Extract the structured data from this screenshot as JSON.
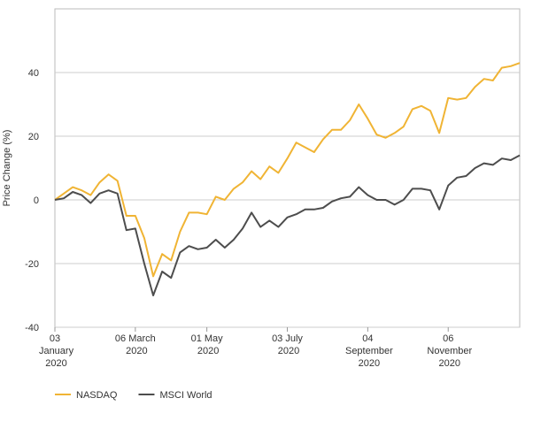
{
  "chart_data": {
    "type": "line",
    "ylabel": "Price Change (%)",
    "x": [
      "2020-01-03",
      "2020-01-10",
      "2020-01-17",
      "2020-01-24",
      "2020-01-31",
      "2020-02-07",
      "2020-02-14",
      "2020-02-21",
      "2020-02-28",
      "2020-03-06",
      "2020-03-13",
      "2020-03-20",
      "2020-03-27",
      "2020-04-03",
      "2020-04-10",
      "2020-04-17",
      "2020-04-24",
      "2020-05-01",
      "2020-05-08",
      "2020-05-15",
      "2020-05-22",
      "2020-05-29",
      "2020-06-05",
      "2020-06-12",
      "2020-06-19",
      "2020-06-26",
      "2020-07-03",
      "2020-07-10",
      "2020-07-17",
      "2020-07-24",
      "2020-07-31",
      "2020-08-07",
      "2020-08-14",
      "2020-08-21",
      "2020-08-28",
      "2020-09-04",
      "2020-09-11",
      "2020-09-18",
      "2020-09-25",
      "2020-10-02",
      "2020-10-09",
      "2020-10-16",
      "2020-10-23",
      "2020-10-30",
      "2020-11-06",
      "2020-11-13",
      "2020-11-20",
      "2020-11-27",
      "2020-12-04",
      "2020-12-11",
      "2020-12-18",
      "2020-12-25",
      "2021-01-01"
    ],
    "series": [
      {
        "name": "NASDAQ",
        "color": "#f0b434",
        "values": [
          0,
          2,
          4,
          3,
          1.5,
          5.5,
          8,
          6,
          -5,
          -5,
          -12,
          -24,
          -17,
          -19,
          -10,
          -4,
          -4,
          -4.5,
          1,
          0,
          3.5,
          5.5,
          9,
          6.5,
          10.5,
          8.5,
          13,
          18,
          16.5,
          15,
          19,
          22,
          22,
          25,
          30,
          25.5,
          20.5,
          19.5,
          21,
          23,
          28.5,
          29.5,
          28,
          21,
          32,
          31.5,
          32,
          35.5,
          38,
          37.5,
          41.5,
          42,
          43
        ]
      },
      {
        "name": "MSCI World",
        "color": "#4d4d4d",
        "values": [
          0,
          0.5,
          2.5,
          1.5,
          -1,
          2,
          3,
          2,
          -9.5,
          -9,
          -20,
          -30,
          -22.5,
          -24.5,
          -16.5,
          -14.5,
          -15.5,
          -15,
          -12.5,
          -15,
          -12.5,
          -9,
          -4,
          -8.5,
          -6.5,
          -8.5,
          -5.5,
          -4.5,
          -3,
          -3,
          -2.5,
          -0.5,
          0.5,
          1,
          4,
          1.5,
          0,
          0,
          -1.5,
          0,
          3.5,
          3.5,
          3,
          -3,
          4.5,
          7,
          7.5,
          10,
          11.5,
          11,
          13,
          12.5,
          14
        ]
      }
    ],
    "xlim": [
      "2020-01-03",
      "2021-01-01"
    ],
    "xticks": [
      {
        "value": "2020-01-03",
        "label": "03 January 2020"
      },
      {
        "value": "2020-03-06",
        "label": "06 March 2020"
      },
      {
        "value": "2020-05-01",
        "label": "01 May 2020"
      },
      {
        "value": "2020-07-03",
        "label": "03 July 2020"
      },
      {
        "value": "2020-09-04",
        "label": "04 September 2020"
      },
      {
        "value": "2020-11-06",
        "label": "06 November 2020"
      }
    ],
    "ylim": [
      -40,
      60
    ],
    "yticks": [
      -40,
      -20,
      0,
      20,
      40
    ],
    "grid": true,
    "legend": "bottom-left"
  }
}
